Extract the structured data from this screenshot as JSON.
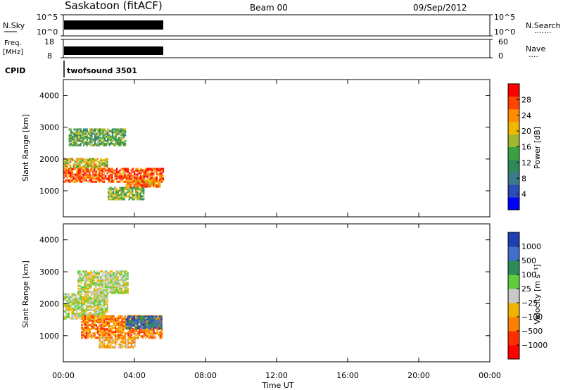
{
  "header": {
    "station": "Saskatoon (fitACF)",
    "beam": "Beam 00",
    "date": "09/Sep/2012"
  },
  "strips": {
    "nsky": {
      "label": "N.Sky",
      "ticks": [
        "10^5",
        "10^0"
      ]
    },
    "nsearch": {
      "label": "N.Search",
      "ticks": [
        "10^5",
        "10^0"
      ],
      "dots": "·······"
    },
    "freq": {
      "label_line1": "Freq.",
      "label_line2": "[MHz]",
      "ticks": [
        "18",
        "8"
      ]
    },
    "nave": {
      "label": "Nave",
      "ticks": [
        "60",
        "0"
      ],
      "dots": "····"
    },
    "cpid": {
      "label": "CPID",
      "text": "twofsound 3501"
    }
  },
  "chart_data": [
    {
      "type": "heatmap",
      "name": "power",
      "xlabel": "",
      "ylabel": "Slant Range [km]",
      "xlim": [
        0,
        24
      ],
      "ylim": [
        180,
        4500
      ],
      "x_ticks": [
        "00:00",
        "04:00",
        "08:00",
        "12:00",
        "16:00",
        "20:00",
        "00:00"
      ],
      "y_ticks": [
        1000,
        2000,
        3000,
        4000
      ],
      "colorbar": {
        "label": "Power [dB]",
        "range": [
          0,
          32
        ],
        "ticks": [
          "4",
          "8",
          "12",
          "16",
          "20",
          "24",
          "28"
        ],
        "colors": [
          "#0000ff",
          "#2c4cb8",
          "#3a7a8a",
          "#2e8b57",
          "#3aa040",
          "#a0b830",
          "#f0b800",
          "#ff8c00",
          "#ff4400",
          "#ff0000"
        ]
      },
      "data_extent_hours": [
        0,
        5.6
      ],
      "bands": [
        {
          "t0": 0.0,
          "t1": 5.6,
          "r0": 1250,
          "r1": 1700,
          "level": 27
        },
        {
          "t0": 0.0,
          "t1": 2.5,
          "r0": 1700,
          "r1": 2000,
          "level": 20
        },
        {
          "t0": 0.3,
          "t1": 3.5,
          "r0": 2400,
          "r1": 2900,
          "level": 14
        },
        {
          "t0": 2.5,
          "t1": 4.5,
          "r0": 700,
          "r1": 1100,
          "level": 16
        },
        {
          "t0": 3.5,
          "t1": 5.4,
          "r0": 1100,
          "r1": 1300,
          "level": 24
        }
      ]
    },
    {
      "type": "heatmap",
      "name": "velocity",
      "xlabel": "Time UT",
      "ylabel": "Slant Range [km]",
      "xlim": [
        0,
        24
      ],
      "ylim": [
        180,
        4500
      ],
      "x_ticks": [
        "00:00",
        "04:00",
        "08:00",
        "12:00",
        "16:00",
        "20:00",
        "00:00"
      ],
      "y_ticks": [
        1000,
        2000,
        3000,
        4000
      ],
      "colorbar": {
        "label": "Velocity [m s⁻¹]",
        "ticks": [
          "1000",
          "500",
          "100",
          "25",
          "−25",
          "−100",
          "−500",
          "−1000"
        ],
        "colors": [
          "#1f3fb0",
          "#3f6fc8",
          "#2e8b57",
          "#5fcc3a",
          "#c8c8c8",
          "#f0b400",
          "#ff8000",
          "#ff3000",
          "#ff0000"
        ]
      },
      "data_extent_hours": [
        0,
        5.6
      ],
      "bands": [
        {
          "t0": 0.0,
          "t1": 2.5,
          "r0": 1500,
          "r1": 2300,
          "level": 4
        },
        {
          "t0": 0.8,
          "t1": 3.6,
          "r0": 2300,
          "r1": 3000,
          "level": 4
        },
        {
          "t0": 1.0,
          "t1": 5.5,
          "r0": 900,
          "r1": 1600,
          "level": 6
        },
        {
          "t0": 2.0,
          "t1": 4.0,
          "r0": 600,
          "r1": 900,
          "level": 5
        },
        {
          "t0": 3.5,
          "t1": 5.5,
          "r0": 1200,
          "r1": 1600,
          "level": 1
        }
      ]
    }
  ],
  "strip_data": {
    "nsky_extent_hours": [
      0,
      5.6
    ],
    "freq_extent_hours": [
      0,
      5.6
    ],
    "cpid_change_hours": [
      0
    ]
  }
}
